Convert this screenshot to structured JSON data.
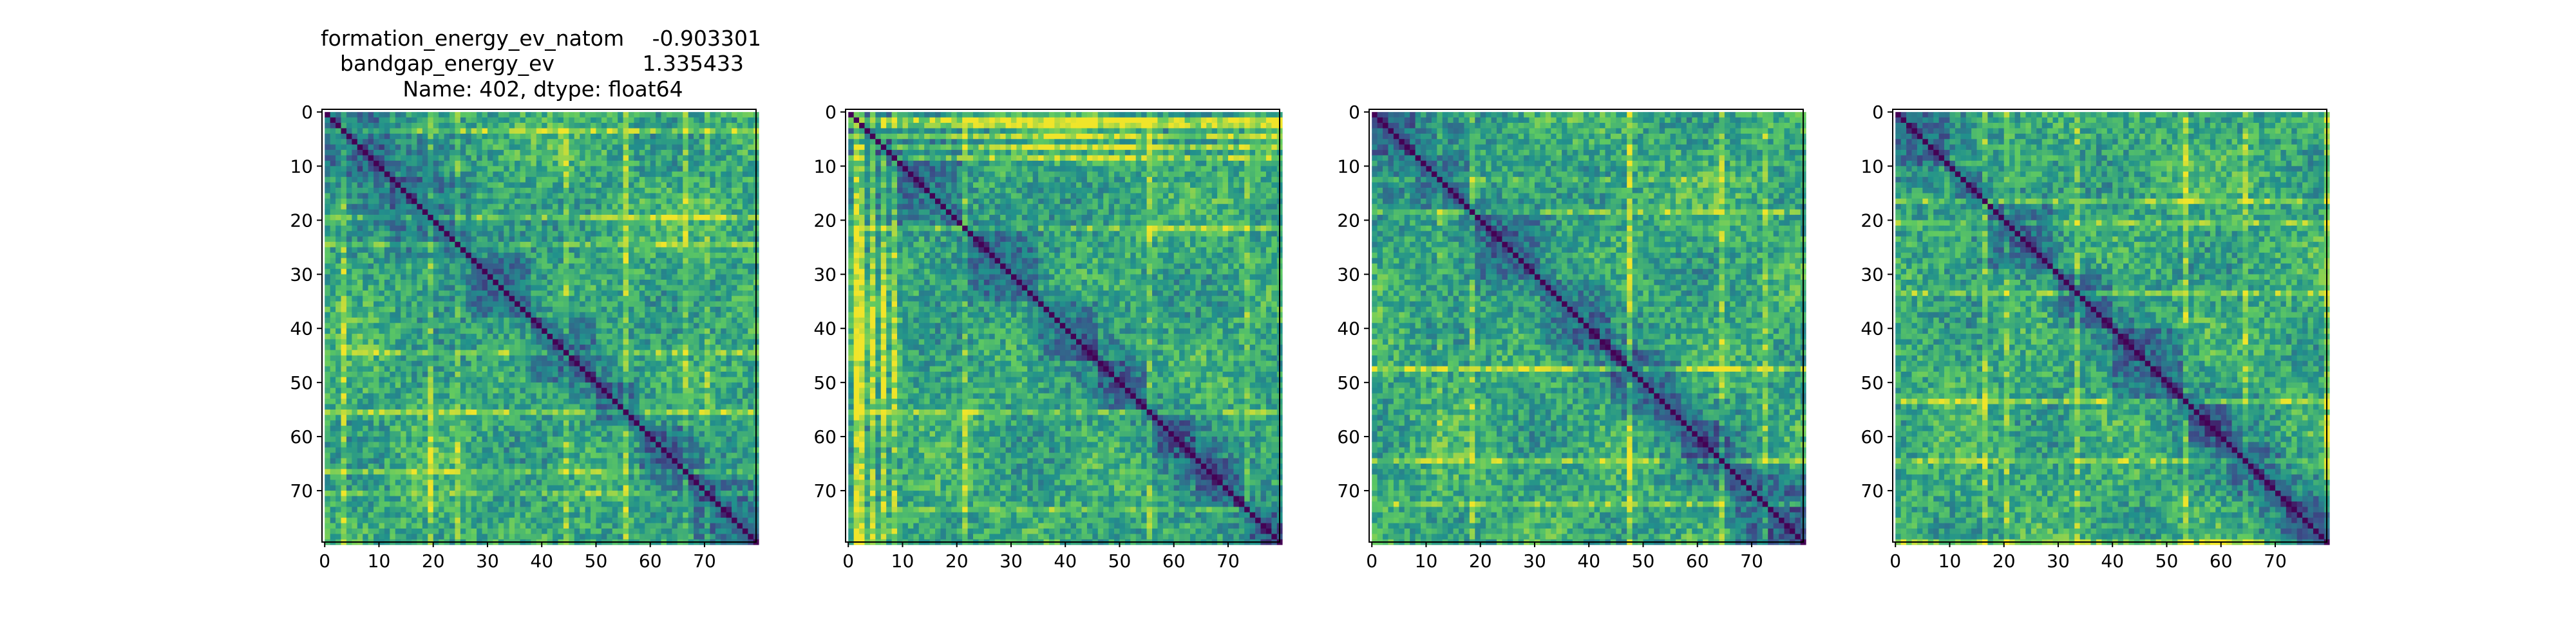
{
  "chart_data": {
    "type": "heatmap",
    "colormap": "viridis",
    "colormap_stops": [
      "#440154",
      "#3b528b",
      "#21918c",
      "#5ec962",
      "#fde725"
    ],
    "frame_color": "#000000",
    "background": "#ffffff",
    "title": {
      "row1_key": "formation_energy_ev_natom",
      "row1_value": "-0.903301",
      "row2_key": "bandgap_energy_ev",
      "row2_value": "1.335433",
      "row3": "Name: 402, dtype: float64"
    },
    "xlim": [
      -0.5,
      79.5
    ],
    "ylim": [
      79.5,
      -0.5
    ],
    "xticks": [
      0,
      10,
      20,
      30,
      40,
      50,
      60,
      70
    ],
    "yticks": [
      0,
      10,
      20,
      30,
      40,
      50,
      60,
      70
    ],
    "panels": [
      {
        "size": 80,
        "diagonal": 0,
        "clusters": [
          [
            0,
            12
          ],
          [
            12,
            27
          ],
          [
            27,
            38
          ],
          [
            38,
            50
          ],
          [
            50,
            58
          ],
          [
            58,
            68
          ],
          [
            68,
            80
          ]
        ],
        "stripes": [
          [
            3,
            0.22
          ],
          [
            19,
            0.18
          ],
          [
            24,
            0.15
          ],
          [
            44,
            0.16
          ],
          [
            55,
            0.2
          ],
          [
            66,
            0.18
          ],
          [
            70,
            0.12
          ]
        ]
      },
      {
        "size": 80,
        "diagonal": 0,
        "clusters": [
          [
            0,
            9
          ],
          [
            9,
            21
          ],
          [
            21,
            35
          ],
          [
            35,
            46
          ],
          [
            46,
            55
          ],
          [
            55,
            64
          ],
          [
            64,
            73
          ],
          [
            73,
            80
          ]
        ],
        "stripes": [
          [
            1,
            0.32
          ],
          [
            2,
            0.3
          ],
          [
            4,
            0.26
          ],
          [
            6,
            0.24
          ],
          [
            8,
            0.22
          ],
          [
            21,
            0.18
          ],
          [
            55,
            0.16
          ],
          [
            73,
            0.14
          ]
        ]
      },
      {
        "size": 80,
        "diagonal": 0,
        "clusters": [
          [
            0,
            8
          ],
          [
            8,
            18
          ],
          [
            18,
            31
          ],
          [
            31,
            44
          ],
          [
            44,
            57
          ],
          [
            57,
            66
          ],
          [
            66,
            80
          ]
        ],
        "stripes": [
          [
            18,
            0.18
          ],
          [
            47,
            0.24
          ],
          [
            64,
            0.2
          ],
          [
            72,
            0.18
          ],
          [
            12,
            0.1
          ]
        ]
      },
      {
        "size": 80,
        "diagonal": 0,
        "clusters": [
          [
            0,
            10
          ],
          [
            10,
            17
          ],
          [
            17,
            29
          ],
          [
            29,
            40
          ],
          [
            40,
            54
          ],
          [
            54,
            62
          ],
          [
            62,
            71
          ],
          [
            71,
            80
          ]
        ],
        "stripes": [
          [
            16,
            0.2
          ],
          [
            20,
            0.16
          ],
          [
            33,
            0.18
          ],
          [
            53,
            0.22
          ],
          [
            64,
            0.16
          ],
          [
            79,
            0.18
          ]
        ]
      }
    ]
  }
}
